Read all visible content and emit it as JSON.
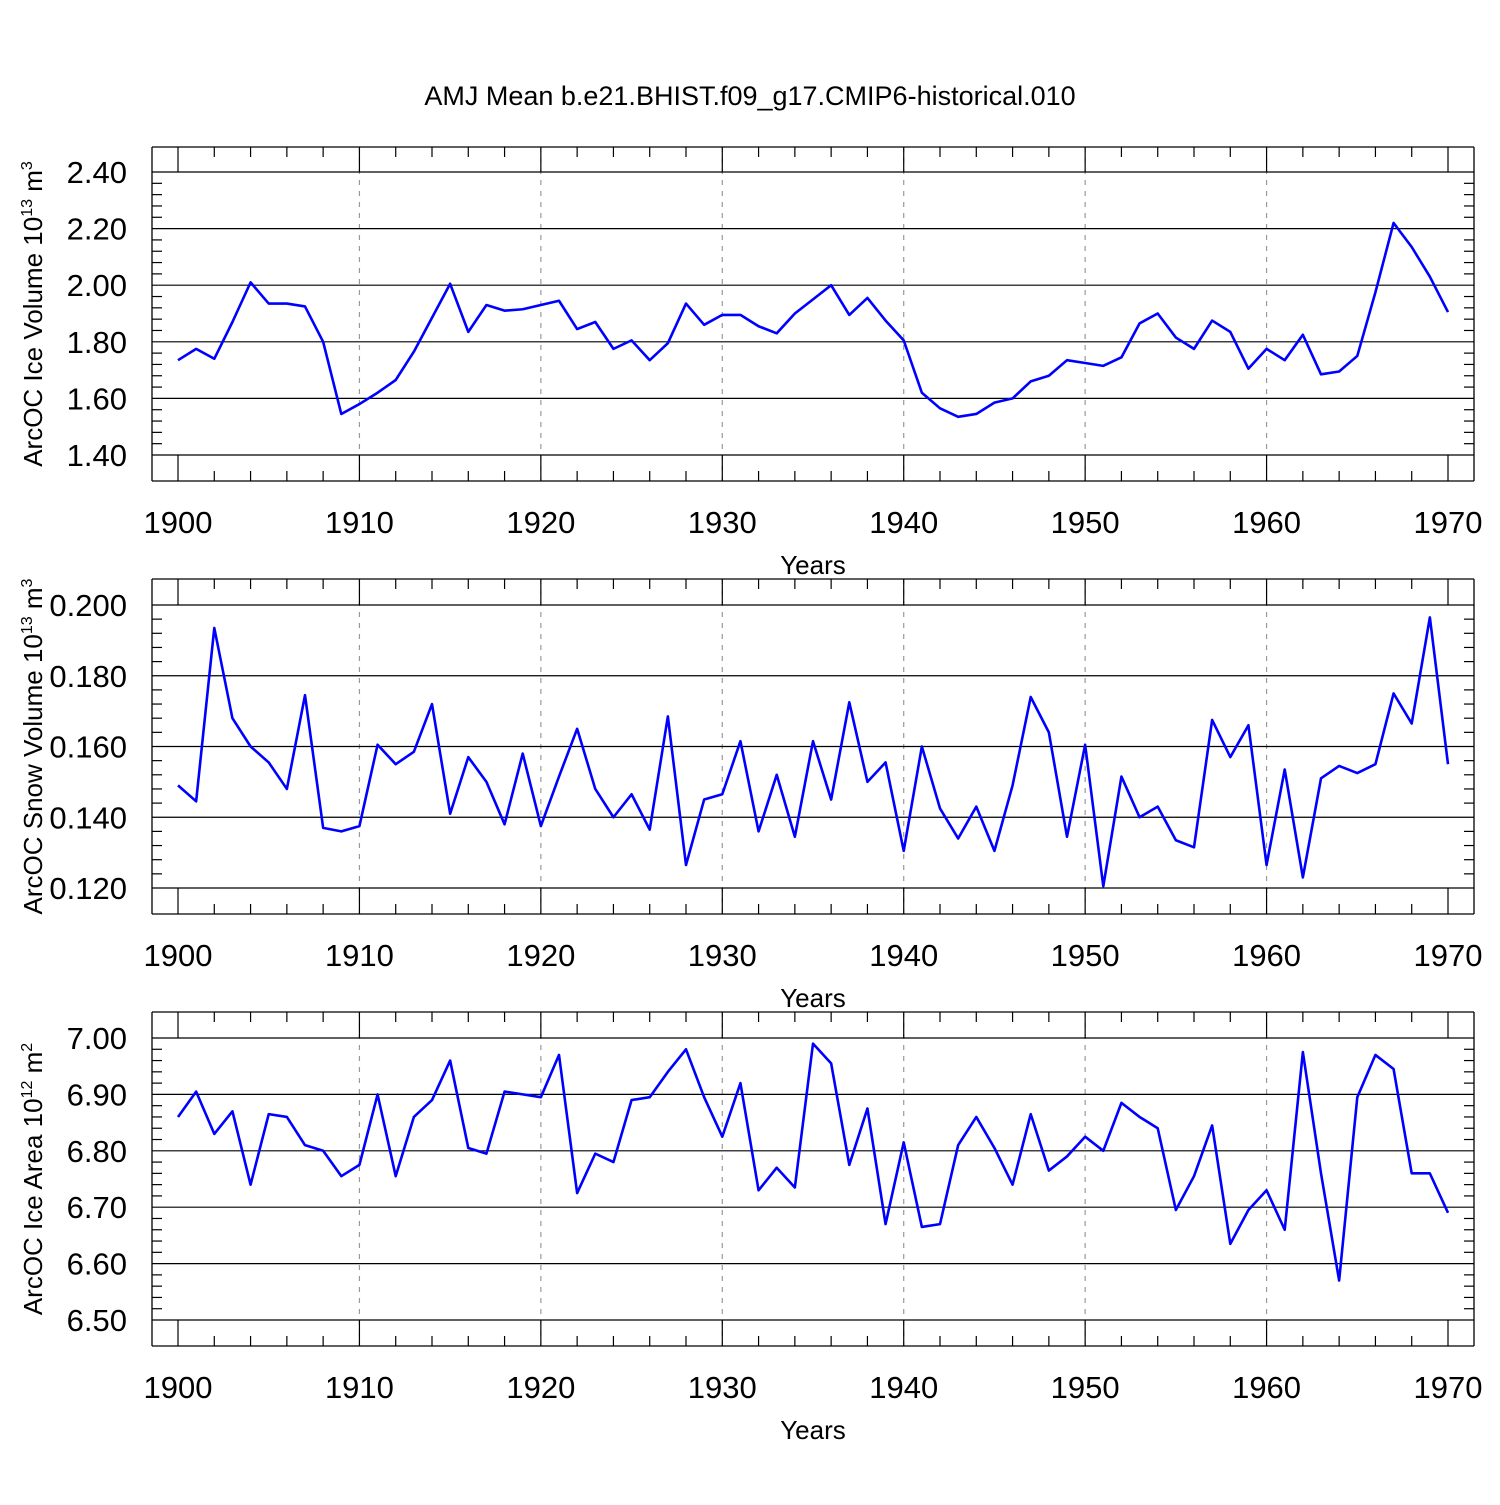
{
  "title": "AMJ Mean b.e21.BHIST.f09_g17.CMIP6-historical.010",
  "colors": {
    "line": "#0000ff",
    "grid": "#999999",
    "axis": "#000000"
  },
  "chart_data": [
    {
      "type": "line",
      "xlabel": "Years",
      "ylabel_parts": {
        "base": "ArcOC Ice Volume 10",
        "exp": "13",
        "unit": " m",
        "unit_exp": "3"
      },
      "xlim": [
        1900,
        1970
      ],
      "ylim": [
        1.4,
        2.4
      ],
      "x_ticks": [
        "1900",
        "1910",
        "1920",
        "1930",
        "1940",
        "1950",
        "1960",
        "1970"
      ],
      "y_ticks": [
        "1.40",
        "1.60",
        "1.80",
        "2.00",
        "2.20",
        "2.40"
      ],
      "grid": "vertical dashed at decades",
      "x": [
        1900,
        1901,
        1902,
        1903,
        1904,
        1905,
        1906,
        1907,
        1908,
        1909,
        1910,
        1911,
        1912,
        1913,
        1914,
        1915,
        1916,
        1917,
        1918,
        1919,
        1920,
        1921,
        1922,
        1923,
        1924,
        1925,
        1926,
        1927,
        1928,
        1929,
        1930,
        1931,
        1932,
        1933,
        1934,
        1935,
        1936,
        1937,
        1938,
        1939,
        1940,
        1941,
        1942,
        1943,
        1944,
        1945,
        1946,
        1947,
        1948,
        1949,
        1950,
        1951,
        1952,
        1953,
        1954,
        1955,
        1956,
        1957,
        1958,
        1959,
        1960,
        1961,
        1962,
        1963,
        1964,
        1965,
        1966,
        1967,
        1968,
        1969,
        1970
      ],
      "values": [
        1.735,
        1.775,
        1.74,
        1.87,
        2.01,
        1.935,
        1.935,
        1.925,
        1.8,
        1.545,
        1.58,
        1.62,
        1.665,
        1.765,
        1.885,
        2.005,
        1.835,
        1.93,
        1.91,
        1.915,
        1.93,
        1.945,
        1.845,
        1.87,
        1.775,
        1.805,
        1.735,
        1.795,
        1.935,
        1.86,
        1.895,
        1.895,
        1.855,
        1.83,
        1.9,
        1.95,
        2.0,
        1.895,
        1.955,
        1.875,
        1.805,
        1.62,
        1.565,
        1.535,
        1.545,
        1.585,
        1.6,
        1.66,
        1.68,
        1.735,
        1.725,
        1.715,
        1.745,
        1.865,
        1.9,
        1.815,
        1.775,
        1.875,
        1.835,
        1.705,
        1.775,
        1.735,
        1.825,
        1.685,
        1.695,
        1.75,
        1.975,
        2.22,
        2.135,
        2.03,
        1.905
      ]
    },
    {
      "type": "line",
      "xlabel": "Years",
      "ylabel_parts": {
        "base": "ArcOC Snow Volume 10",
        "exp": "13",
        "unit": " m",
        "unit_exp": "3"
      },
      "xlim": [
        1900,
        1970
      ],
      "ylim": [
        0.12,
        0.2
      ],
      "x_ticks": [
        "1900",
        "1910",
        "1920",
        "1930",
        "1940",
        "1950",
        "1960",
        "1970"
      ],
      "y_ticks": [
        "0.120",
        "0.140",
        "0.160",
        "0.180",
        "0.200"
      ],
      "grid": "vertical dashed at decades",
      "x": [
        1900,
        1901,
        1902,
        1903,
        1904,
        1905,
        1906,
        1907,
        1908,
        1909,
        1910,
        1911,
        1912,
        1913,
        1914,
        1915,
        1916,
        1917,
        1918,
        1919,
        1920,
        1921,
        1922,
        1923,
        1924,
        1925,
        1926,
        1927,
        1928,
        1929,
        1930,
        1931,
        1932,
        1933,
        1934,
        1935,
        1936,
        1937,
        1938,
        1939,
        1940,
        1941,
        1942,
        1943,
        1944,
        1945,
        1946,
        1947,
        1948,
        1949,
        1950,
        1951,
        1952,
        1953,
        1954,
        1955,
        1956,
        1957,
        1958,
        1959,
        1960,
        1961,
        1962,
        1963,
        1964,
        1965,
        1966,
        1967,
        1968,
        1969,
        1970
      ],
      "values": [
        0.149,
        0.1445,
        0.1935,
        0.168,
        0.16,
        0.1555,
        0.148,
        0.1745,
        0.137,
        0.136,
        0.1375,
        0.1605,
        0.155,
        0.1585,
        0.172,
        0.141,
        0.157,
        0.15,
        0.138,
        0.158,
        0.1375,
        0.1515,
        0.165,
        0.148,
        0.14,
        0.1465,
        0.1365,
        0.1685,
        0.1265,
        0.145,
        0.1465,
        0.1615,
        0.136,
        0.152,
        0.1345,
        0.1615,
        0.145,
        0.1725,
        0.15,
        0.1555,
        0.1305,
        0.16,
        0.1425,
        0.134,
        0.143,
        0.1305,
        0.149,
        0.174,
        0.164,
        0.1345,
        0.1605,
        0.1205,
        0.1515,
        0.14,
        0.143,
        0.1335,
        0.1315,
        0.1675,
        0.157,
        0.166,
        0.1265,
        0.1535,
        0.123,
        0.151,
        0.1545,
        0.1525,
        0.155,
        0.175,
        0.1665,
        0.1965,
        0.155
      ]
    },
    {
      "type": "line",
      "xlabel": "Years",
      "ylabel_parts": {
        "base": "ArcOC Ice Area 10",
        "exp": "12",
        "unit": " m",
        "unit_exp": "2"
      },
      "xlim": [
        1900,
        1970
      ],
      "ylim": [
        6.5,
        7.0
      ],
      "x_ticks": [
        "1900",
        "1910",
        "1920",
        "1930",
        "1940",
        "1950",
        "1960",
        "1970"
      ],
      "y_ticks": [
        "6.50",
        "6.60",
        "6.70",
        "6.80",
        "6.90",
        "7.00"
      ],
      "grid": "vertical dashed at decades",
      "x": [
        1900,
        1901,
        1902,
        1903,
        1904,
        1905,
        1906,
        1907,
        1908,
        1909,
        1910,
        1911,
        1912,
        1913,
        1914,
        1915,
        1916,
        1917,
        1918,
        1919,
        1920,
        1921,
        1922,
        1923,
        1924,
        1925,
        1926,
        1927,
        1928,
        1929,
        1930,
        1931,
        1932,
        1933,
        1934,
        1935,
        1936,
        1937,
        1938,
        1939,
        1940,
        1941,
        1942,
        1943,
        1944,
        1945,
        1946,
        1947,
        1948,
        1949,
        1950,
        1951,
        1952,
        1953,
        1954,
        1955,
        1956,
        1957,
        1958,
        1959,
        1960,
        1961,
        1962,
        1963,
        1964,
        1965,
        1966,
        1967,
        1968,
        1969,
        1970
      ],
      "values": [
        6.86,
        6.905,
        6.83,
        6.87,
        6.74,
        6.865,
        6.86,
        6.81,
        6.8,
        6.755,
        6.775,
        6.9,
        6.755,
        6.86,
        6.89,
        6.96,
        6.805,
        6.795,
        6.905,
        6.9,
        6.895,
        6.97,
        6.725,
        6.795,
        6.78,
        6.89,
        6.895,
        6.94,
        6.98,
        6.895,
        6.825,
        6.92,
        6.73,
        6.77,
        6.735,
        6.99,
        6.955,
        6.775,
        6.875,
        6.67,
        6.815,
        6.665,
        6.67,
        6.81,
        6.86,
        6.805,
        6.74,
        6.865,
        6.765,
        6.79,
        6.825,
        6.8,
        6.885,
        6.86,
        6.84,
        6.695,
        6.755,
        6.845,
        6.635,
        6.695,
        6.73,
        6.66,
        6.975,
        6.76,
        6.57,
        6.895,
        6.97,
        6.945,
        6.76,
        6.76,
        6.69
      ]
    }
  ]
}
